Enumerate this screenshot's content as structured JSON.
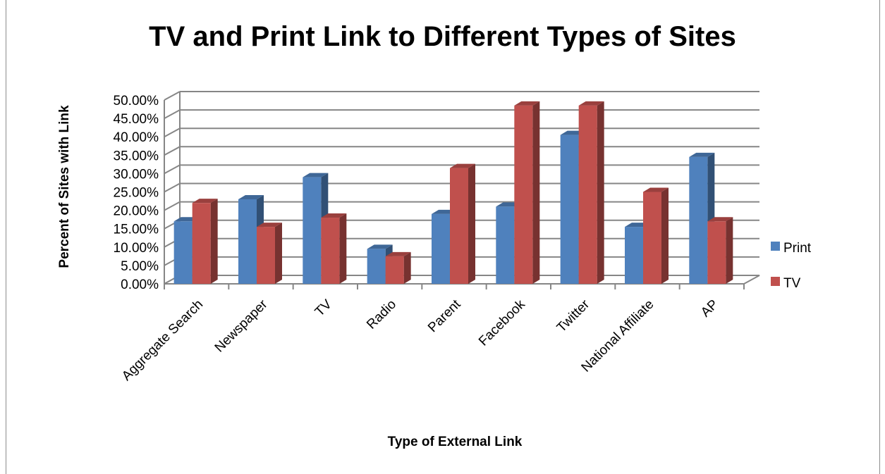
{
  "chart_data": {
    "type": "bar",
    "title": "TV and Print Link to Different Types of Sites",
    "xlabel": "Type of External Link",
    "ylabel": "Percent of Sites with Link",
    "categories": [
      "Aggregate Search",
      "Newspaper",
      "TV",
      "Radio",
      "Parent",
      "Facebook",
      "Twitter",
      "National Affiliate",
      "AP"
    ],
    "series": [
      {
        "name": "Print",
        "values": [
          0.17,
          0.23,
          0.29,
          0.095,
          0.19,
          0.21,
          0.405,
          0.155,
          0.345
        ],
        "color": "#4f81bd"
      },
      {
        "name": "TV",
        "values": [
          0.22,
          0.155,
          0.18,
          0.075,
          0.315,
          0.485,
          0.485,
          0.25,
          0.17
        ],
        "color": "#c0504d"
      }
    ],
    "ylim": [
      0,
      0.5
    ],
    "yticks": [
      "0.00%",
      "5.00%",
      "10.00%",
      "15.00%",
      "20.00%",
      "25.00%",
      "30.00%",
      "35.00%",
      "40.00%",
      "45.00%",
      "50.00%"
    ],
    "grid": true,
    "legend": "right"
  }
}
